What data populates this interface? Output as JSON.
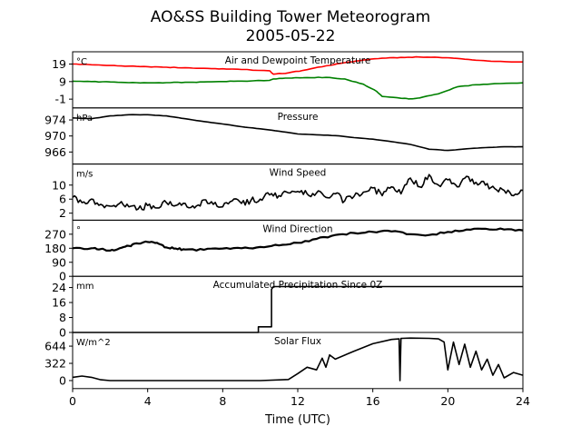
{
  "figure": {
    "title_line1": "AO&SS Building Tower Meteorogram",
    "title_line2": "2005-05-22",
    "xlabel": "Time (UTC)",
    "x_ticks": [
      0,
      4,
      8,
      12,
      16,
      20,
      24
    ]
  },
  "chart_data": [
    {
      "type": "line",
      "title": "Air and Dewpoint Temperature",
      "unit_label": "°C",
      "ylim": [
        -6,
        26
      ],
      "y_ticks": [
        19,
        9,
        -1
      ],
      "x_range": [
        0,
        24
      ],
      "series": [
        {
          "color": "#ff0000",
          "x": [
            0,
            1,
            2,
            3,
            4,
            5,
            6,
            7,
            8,
            9,
            10.5,
            10.7,
            11.5,
            12.5,
            13.5,
            14.5,
            15.5,
            16.5,
            17.5,
            18.5,
            19.5,
            20.5,
            21.5,
            22.5,
            24
          ],
          "y": [
            19,
            18.6,
            18.2,
            17.8,
            17.5,
            17.2,
            16.9,
            16.6,
            16.3,
            15.9,
            15.2,
            13.2,
            14.0,
            15.8,
            18.0,
            19.8,
            21.3,
            22.3,
            22.8,
            23.0,
            22.8,
            22.2,
            21.2,
            20.5,
            20.2
          ]
        },
        {
          "color": "#008000",
          "x": [
            0,
            1,
            2,
            3,
            4,
            5,
            6,
            7,
            8,
            9,
            10.5,
            10.7,
            11.5,
            12.5,
            13.5,
            14.5,
            15.5,
            16.2,
            16.5,
            17.5,
            18,
            18.5,
            19.5,
            20.5,
            21.5,
            22.5,
            24
          ],
          "y": [
            9.2,
            9.0,
            8.8,
            8.4,
            8.3,
            8.4,
            8.6,
            8.8,
            9.0,
            9.3,
            9.7,
            10.5,
            11.0,
            11.3,
            11.4,
            10.5,
            7.5,
            3.5,
            0.5,
            -0.5,
            -0.8,
            -0.3,
            2.0,
            6.0,
            7.2,
            7.8,
            8.3
          ]
        }
      ]
    },
    {
      "type": "line",
      "title": "Pressure",
      "unit_label": "hPa",
      "ylim": [
        963,
        977
      ],
      "y_ticks": [
        974,
        970,
        966
      ],
      "x_range": [
        0,
        24
      ],
      "series": [
        {
          "color": "#000000",
          "x": [
            0,
            1,
            2,
            3,
            4,
            5,
            6,
            7,
            8,
            9,
            10,
            11,
            12,
            13,
            14,
            15,
            16,
            17,
            18,
            19,
            20,
            21,
            22,
            23,
            24
          ],
          "y": [
            974.5,
            974.3,
            975.0,
            975.3,
            975.3,
            975.0,
            974.3,
            973.6,
            973.0,
            972.3,
            971.8,
            971.2,
            970.5,
            970.3,
            970.1,
            969.6,
            969.2,
            968.6,
            967.9,
            966.7,
            966.4,
            966.8,
            967.1,
            967.3,
            967.3
          ]
        }
      ]
    },
    {
      "type": "line",
      "title": "Wind Speed",
      "unit_label": "m/s",
      "ylim": [
        0,
        16
      ],
      "y_ticks": [
        10,
        6,
        2
      ],
      "x_range": [
        0,
        24
      ],
      "series": [
        {
          "color": "#000000",
          "x": [
            0,
            0.5,
            1,
            1.5,
            2,
            2.5,
            3,
            3.5,
            4,
            4.5,
            5,
            5.5,
            6,
            6.5,
            7,
            7.5,
            8,
            8.5,
            9,
            9.5,
            10,
            10.5,
            11,
            11.5,
            12,
            12.5,
            13,
            13.5,
            14,
            14.5,
            15,
            15.5,
            16,
            16.5,
            17,
            17.5,
            18,
            18.5,
            19,
            19.5,
            20,
            20.5,
            21,
            21.5,
            22,
            22.5,
            23,
            23.5,
            24
          ],
          "y": [
            6.5,
            5.0,
            6.0,
            4.5,
            4.0,
            4.8,
            3.8,
            3.2,
            4.2,
            3.5,
            5.0,
            4.2,
            4.8,
            3.5,
            5.8,
            4.5,
            3.8,
            5.5,
            4.8,
            5.6,
            6.0,
            7.2,
            7.0,
            7.8,
            8.2,
            7.5,
            7.8,
            6.5,
            7.5,
            5.5,
            6.8,
            8.0,
            9.2,
            7.0,
            9.5,
            7.5,
            12.0,
            9.5,
            13.0,
            10.0,
            11.5,
            9.5,
            12.5,
            10.8,
            10.0,
            9.0,
            8.5,
            7.0,
            8.5
          ]
        }
      ]
    },
    {
      "type": "line",
      "title": "Wind Direction",
      "unit_label": "°",
      "ylim": [
        0,
        360
      ],
      "y_ticks": [
        270,
        180,
        90,
        0
      ],
      "x_range": [
        0,
        24
      ],
      "series": [
        {
          "color": "#000000",
          "x": [
            0,
            1,
            1.5,
            2,
            2.5,
            3,
            3.5,
            4,
            4.5,
            5,
            5.5,
            6,
            7,
            8,
            9,
            10,
            11,
            12,
            13,
            14,
            15,
            16,
            17,
            18,
            19,
            20,
            21,
            22,
            23,
            24
          ],
          "y": [
            180,
            180,
            175,
            165,
            180,
            195,
            210,
            220,
            215,
            185,
            178,
            172,
            170,
            178,
            180,
            188,
            198,
            215,
            240,
            265,
            278,
            285,
            288,
            270,
            265,
            285,
            300,
            305,
            300,
            295
          ]
        }
      ]
    },
    {
      "type": "line",
      "title": "Accumulated Precipitation Since 0Z",
      "unit_label": "mm",
      "ylim": [
        0,
        30
      ],
      "y_ticks": [
        24,
        16,
        8,
        0
      ],
      "x_range": [
        0,
        24
      ],
      "series": [
        {
          "color": "#000000",
          "x": [
            0,
            9.9,
            9.9,
            10.6,
            10.6,
            10.7,
            24
          ],
          "y": [
            0,
            0,
            3,
            3,
            23,
            24.5,
            24.5
          ]
        }
      ]
    },
    {
      "type": "line",
      "title": "Solar Flux",
      "unit_label": "W/m^2",
      "ylim": [
        -150,
        900
      ],
      "y_ticks": [
        644,
        322,
        0
      ],
      "x_range": [
        0,
        24
      ],
      "series": [
        {
          "color": "#000000",
          "x": [
            0,
            0.5,
            1,
            1.5,
            2,
            4,
            6,
            8,
            10,
            11.5,
            12,
            12.5,
            13,
            13.3,
            13.5,
            13.7,
            14,
            15,
            16,
            17,
            17.4,
            17.45,
            17.5,
            17.55,
            18,
            19,
            19.5,
            19.8,
            20,
            20.3,
            20.6,
            20.9,
            21.2,
            21.5,
            21.8,
            22.1,
            22.4,
            22.7,
            23,
            23.5,
            24
          ],
          "y": [
            60,
            85,
            60,
            15,
            0,
            0,
            0,
            0,
            0,
            20,
            130,
            250,
            200,
            420,
            250,
            480,
            400,
            550,
            690,
            770,
            780,
            0,
            790,
            790,
            795,
            790,
            780,
            720,
            200,
            720,
            300,
            680,
            250,
            550,
            200,
            400,
            100,
            300,
            50,
            150,
            100
          ]
        }
      ]
    }
  ]
}
